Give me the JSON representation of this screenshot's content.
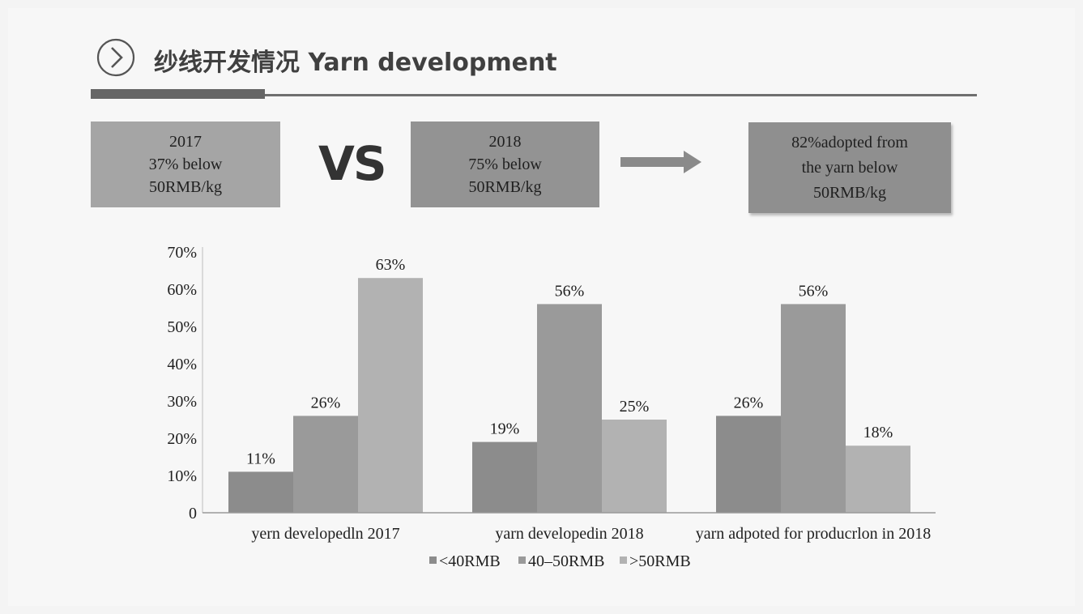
{
  "header": {
    "title": "纱线开发情况 Yarn development"
  },
  "boxes": {
    "y2017": "2017\n37% below\n50RMB/kg",
    "vs": "VS",
    "y2018": "2018\n75% below\n50RMB/kg",
    "adopted": "82%adopted from\nthe yarn below\n50RMB/kg"
  },
  "colors": {
    "accent": "#666666",
    "series": [
      "#8c8c8c",
      "#9a9a9a",
      "#b2b2b2"
    ]
  },
  "chart_data": {
    "type": "bar",
    "categories": [
      "yern developedln 2017",
      "yarn developedin 2018",
      "yarn adpoted for producrlon in 2018"
    ],
    "series": [
      {
        "name": "<40RMB",
        "values": [
          11,
          19,
          26
        ]
      },
      {
        "name": "40–50RMB",
        "values": [
          26,
          56,
          56
        ]
      },
      {
        "name": ">50RMB",
        "values": [
          63,
          25,
          18
        ]
      }
    ],
    "data_labels": [
      [
        "11%",
        "26%",
        "63%"
      ],
      [
        "19%",
        "56%",
        "25%"
      ],
      [
        "26%",
        "56%",
        "18%"
      ]
    ],
    "yticks": [
      "0",
      "10%",
      "20%",
      "30%",
      "40%",
      "50%",
      "60%",
      "70%"
    ],
    "ylim": [
      0,
      70
    ],
    "grid": false,
    "legend": "bottom"
  }
}
